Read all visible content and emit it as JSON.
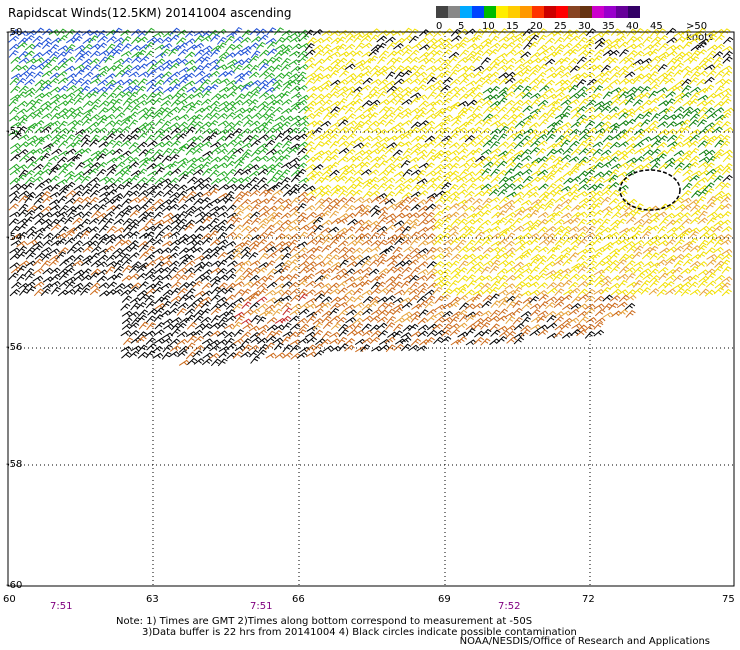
{
  "title": "Rapidscat Winds(12.5KM) 20141004 ascending",
  "legend": {
    "labels": [
      "0",
      "5",
      "10",
      "15",
      "20",
      "25",
      "30",
      "35",
      "40",
      "45",
      ">50 knots"
    ],
    "colors": [
      "#444444",
      "#888888",
      "#00aaff",
      "#0044ff",
      "#00bb00",
      "#ffee00",
      "#ffcc00",
      "#ff9900",
      "#ff3300",
      "#cc0000",
      "#ff0000",
      "#884422",
      "#663311",
      "#cc00cc",
      "#9900cc",
      "#660099",
      "#330066"
    ]
  },
  "map": {
    "x_ticks": [
      "60",
      "63",
      "66",
      "69",
      "72",
      "75"
    ],
    "y_ticks": [
      "-50",
      "-52",
      "-54",
      "-56",
      "-58",
      "-60"
    ],
    "time_labels": [
      "7:51",
      "7:51",
      "7:52"
    ],
    "wind_colors": {
      "black": "#000000",
      "blue": "#1d4fd6",
      "green": "#22aa22",
      "darkgreen": "#0b7d0b",
      "yellow": "#f2e000",
      "orange": "#e7a33a",
      "darkorange": "#cc6a1a",
      "red": "#c42a2a"
    }
  },
  "notes": {
    "line1": "Note: 1) Times are GMT 2)Times along bottom correspond to measurement at -50S",
    "line2": "3)Data buffer is 22 hrs from 20141004 4) Black circles indicate possible contamination",
    "credit": "NOAA/NESDIS/Office of Research and Applications"
  }
}
